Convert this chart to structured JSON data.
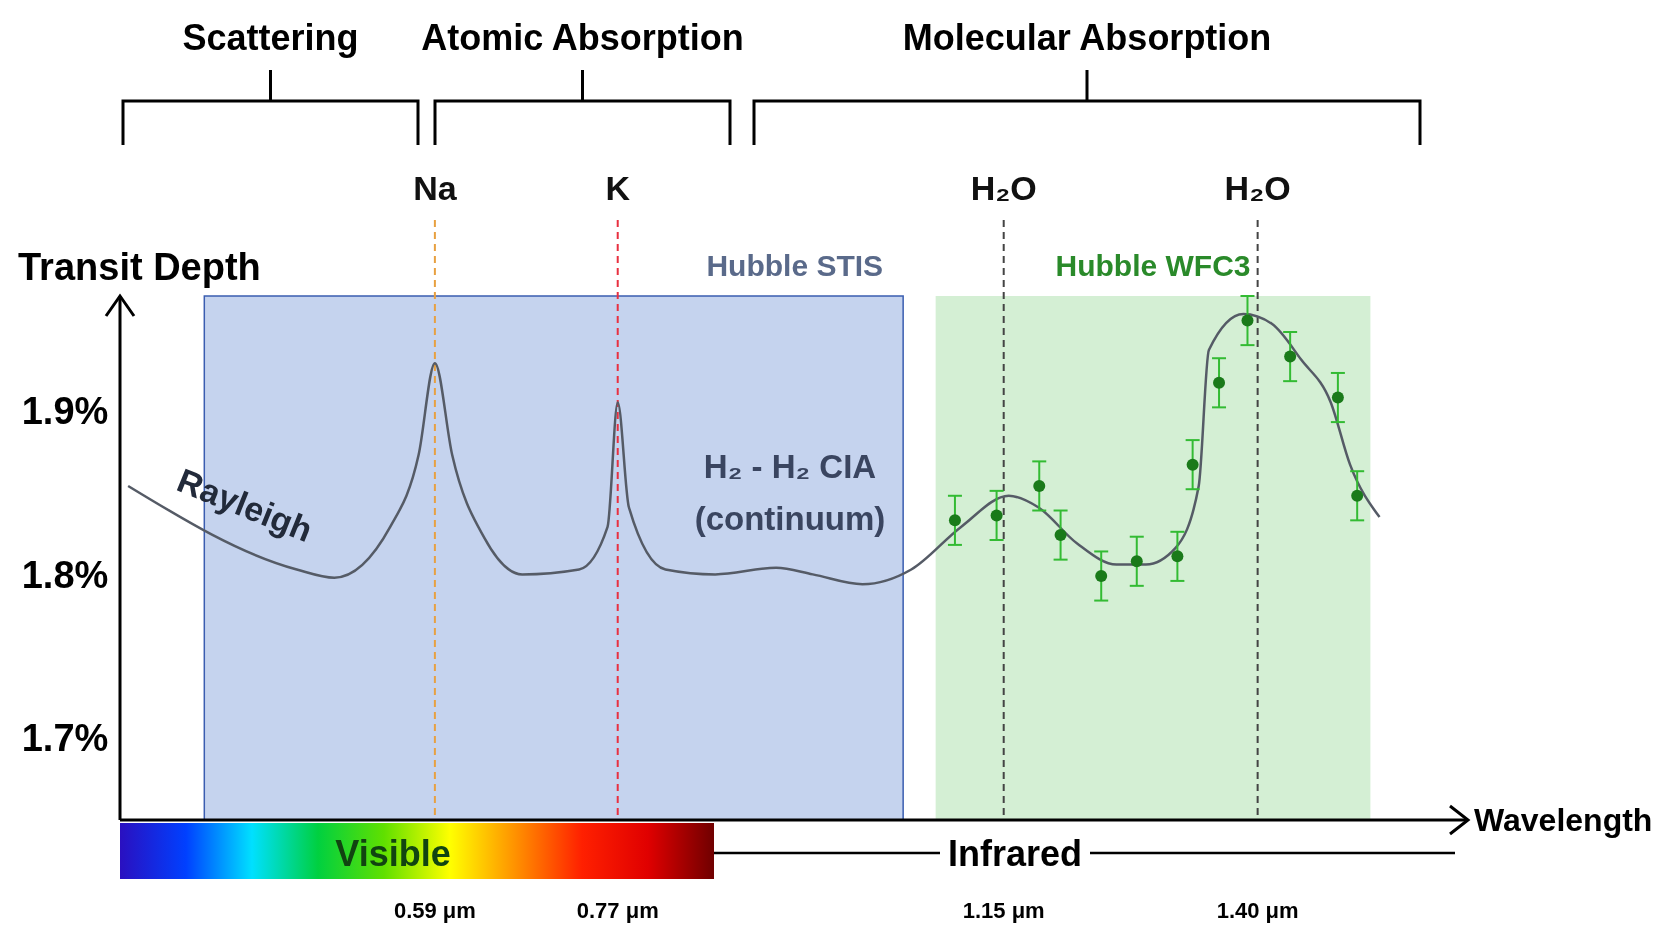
{
  "chart_data": {
    "type": "line",
    "xlabel": "Wavelength",
    "ylabel": "Transit Depth",
    "xlim": [
      0.28,
      1.55
    ],
    "xticks": [
      {
        "value": 0.59,
        "label": "0.59 μm"
      },
      {
        "value": 0.77,
        "label": "0.77 μm"
      },
      {
        "value": 1.15,
        "label": "1.15 μm"
      },
      {
        "value": 1.4,
        "label": "1.40 μm"
      }
    ],
    "ylim": [
      1.65,
      1.97
    ],
    "yticks": [
      {
        "value": 1.7,
        "label": "1.7%"
      },
      {
        "value": 1.8,
        "label": "1.8%"
      },
      {
        "value": 1.9,
        "label": "1.9%"
      }
    ],
    "grid": false,
    "series": [
      {
        "color": "#555b66",
        "marker": "none",
        "line_style": "solid",
        "x": [
          0.288,
          0.454,
          0.491,
          0.546,
          0.574,
          0.59,
          0.607,
          0.639,
          0.676,
          0.732,
          0.76,
          0.77,
          0.781,
          0.817,
          0.866,
          0.926,
          0.962,
          1.011,
          1.059,
          1.108,
          1.155,
          1.184,
          1.222,
          1.261,
          1.29,
          1.319,
          1.342,
          1.352,
          1.386,
          1.414,
          1.443,
          1.472,
          1.491,
          1.52
        ],
        "values": [
          1.854,
          1.803,
          1.798,
          1.829,
          1.873,
          1.929,
          1.873,
          1.822,
          1.8,
          1.803,
          1.829,
          1.905,
          1.841,
          1.803,
          1.8,
          1.804,
          1.8,
          1.794,
          1.803,
          1.829,
          1.848,
          1.841,
          1.819,
          1.806,
          1.806,
          1.816,
          1.854,
          1.937,
          1.959,
          1.953,
          1.931,
          1.905,
          1.867,
          1.835
        ]
      },
      {
        "type": "scatter",
        "color": "#1a7a1a",
        "marker": "circle",
        "x": [
          1.102,
          1.143,
          1.185,
          1.206,
          1.246,
          1.281,
          1.321,
          1.336,
          1.362,
          1.39,
          1.432,
          1.479,
          1.498
        ],
        "values": [
          1.833,
          1.836,
          1.854,
          1.824,
          1.799,
          1.808,
          1.811,
          1.867,
          1.917,
          1.955,
          1.933,
          1.908,
          1.848
        ],
        "errors": [
          0.015,
          0.015,
          0.015,
          0.015,
          0.015,
          0.015,
          0.015,
          0.015,
          0.015,
          0.015,
          0.015,
          0.015,
          0.015
        ]
      }
    ],
    "bands": [
      {
        "axis": "x",
        "from": 0.363,
        "to": 1.051,
        "label": "Hubble STIS",
        "color": "#c5d3ee"
      },
      {
        "axis": "x",
        "from": 1.083,
        "to": 1.511,
        "label": "Hubble WFC3",
        "color": "#d4efd4"
      }
    ],
    "ref_lines": [
      {
        "axis": "x",
        "value": 0.59,
        "label": "Na",
        "color": "#e8a040",
        "line_style": "dashed"
      },
      {
        "axis": "x",
        "value": 0.77,
        "label": "K",
        "color": "#e83040",
        "line_style": "dashed"
      },
      {
        "axis": "x",
        "value": 1.15,
        "label": "H₂O",
        "color": "#444444",
        "line_style": "dashed"
      },
      {
        "axis": "x",
        "value": 1.4,
        "label": "H₂O",
        "color": "#444444",
        "line_style": "dashed"
      }
    ],
    "annotations": [
      "Scattering",
      "Atomic Absorption",
      "Molecular Absorption",
      "Visible",
      "Infrared",
      "Rayleigh",
      "H₂ - H₂ CIA",
      "(continuum)"
    ]
  }
}
